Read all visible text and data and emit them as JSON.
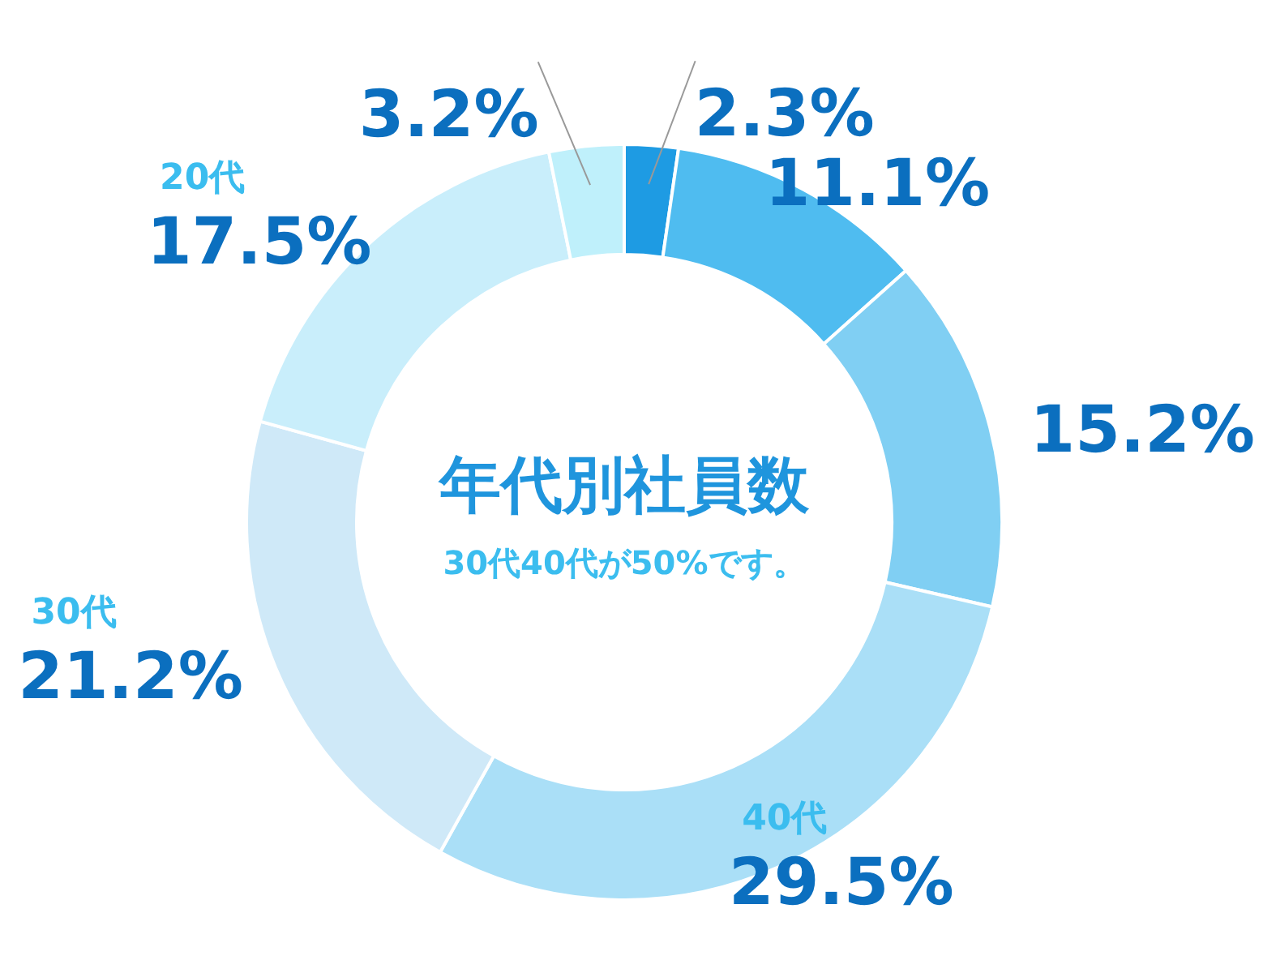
{
  "chart_data": {
    "type": "donut",
    "title": "年代別社員数",
    "subtitle": "30代40代が50%です。",
    "categories": [
      null,
      null,
      null,
      "40代",
      "30代",
      "20代",
      null
    ],
    "values": [
      2.3,
      11.1,
      15.2,
      29.5,
      21.2,
      17.5,
      3.2
    ],
    "value_labels": [
      "2.3%",
      "11.1%",
      "15.2%",
      "29.5%",
      "21.2%",
      "17.5%",
      "3.2%"
    ],
    "colors": [
      "#1e9be3",
      "#4fbcf0",
      "#80cff3",
      "#aadff7",
      "#cfe9f8",
      "#c9eefb",
      "#bff0fb"
    ]
  }
}
